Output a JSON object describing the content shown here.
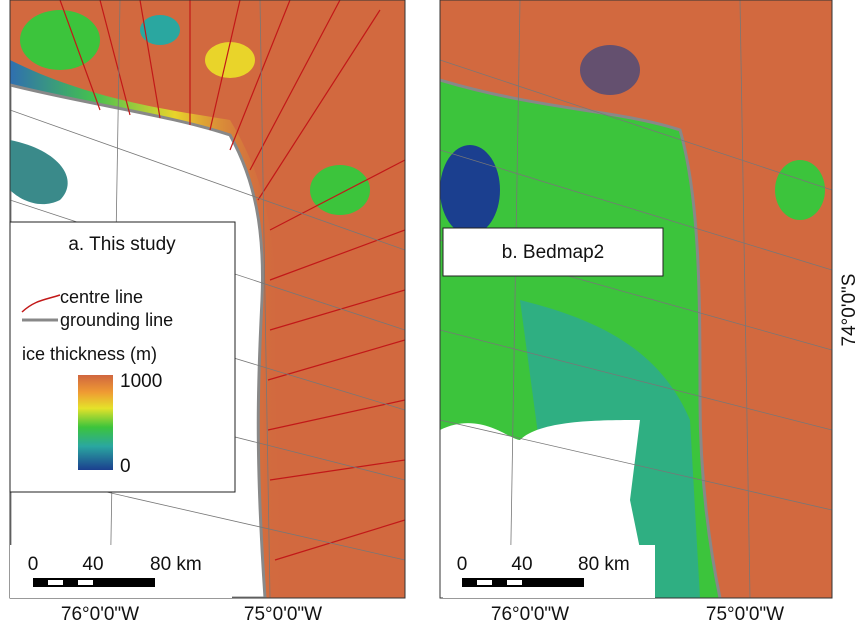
{
  "panels": [
    {
      "label": "a. This study",
      "x_labels": [
        "76°0'0\"W",
        "75°0'0\"W"
      ],
      "scale_bar": [
        "0",
        "40",
        "80 km"
      ]
    },
    {
      "label": "b. Bedmap2",
      "x_labels": [
        "76°0'0\"W",
        "75°0'0\"W"
      ],
      "scale_bar": [
        "0",
        "40",
        "80 km"
      ]
    }
  ],
  "legend": {
    "centre_line": "centre line",
    "grounding_line": "grounding line",
    "colorbar_title": "ice thickness (m)",
    "colorbar_max": "1000",
    "colorbar_min": "0"
  },
  "y_label": "74°0'0\"S"
}
